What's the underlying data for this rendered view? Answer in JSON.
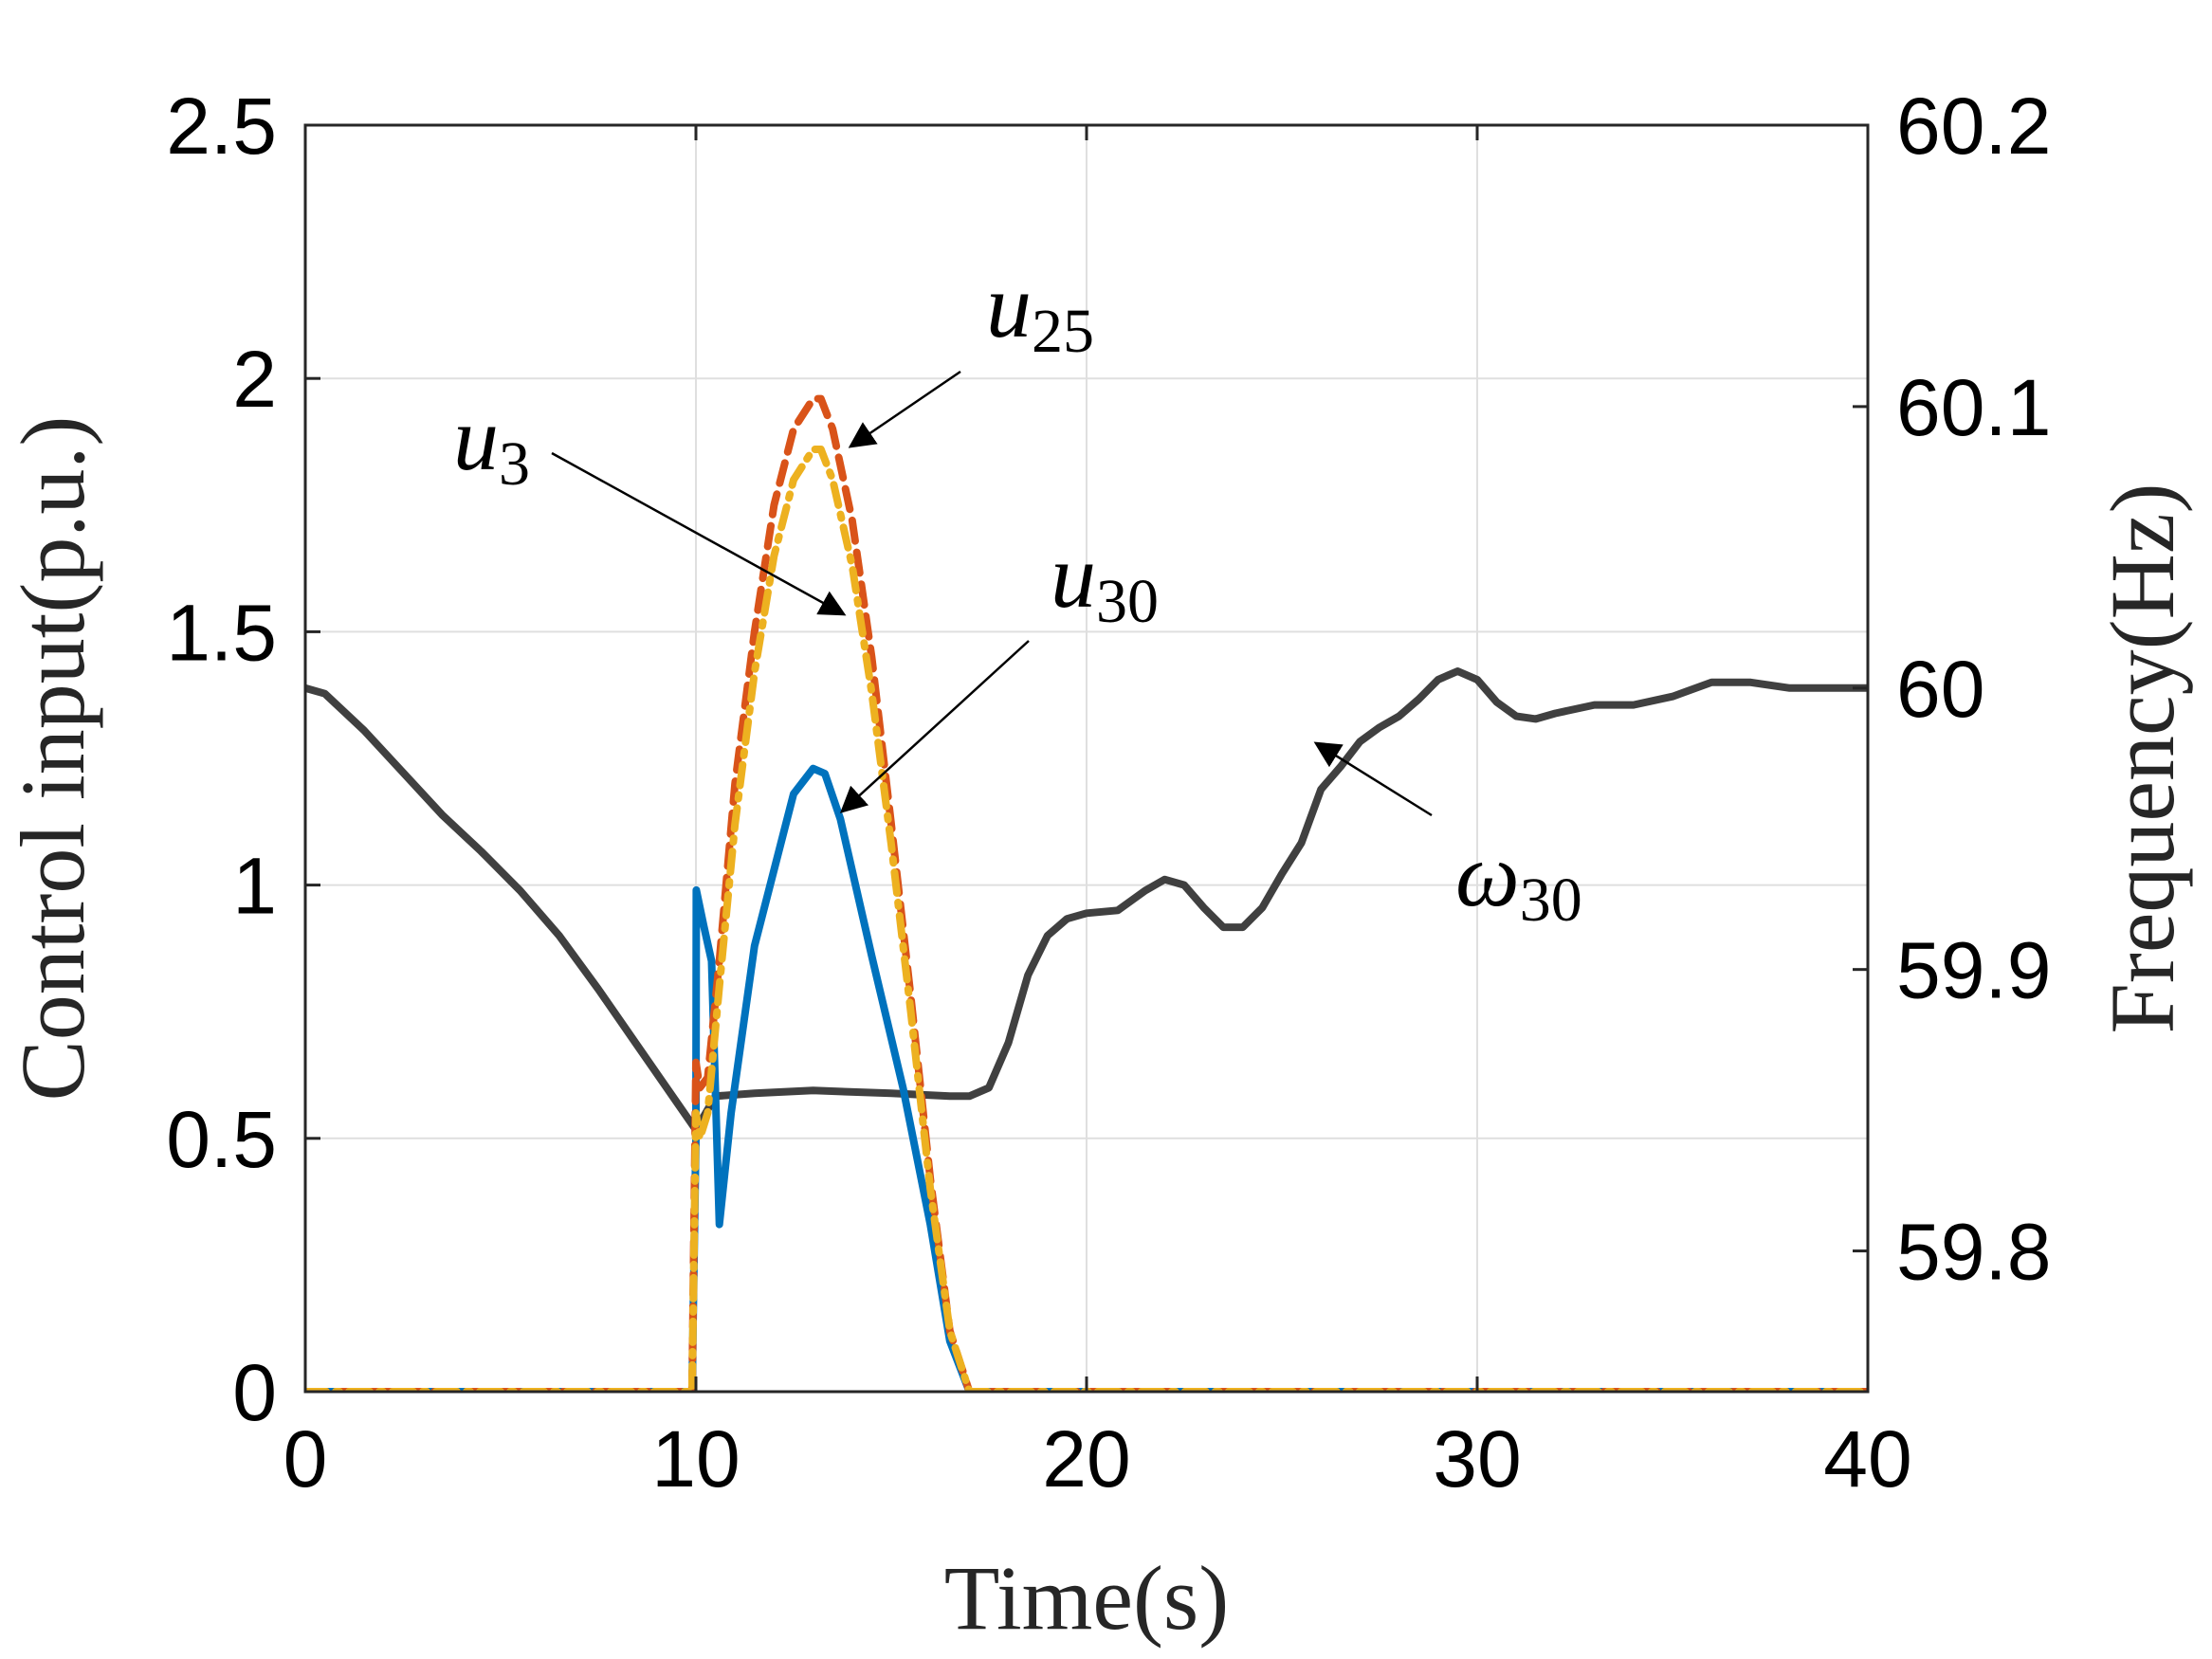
{
  "chart_data": {
    "type": "line",
    "xlabel": "Time(s)",
    "ylabel_left": "Control input(p.u.)",
    "ylabel_right": "Frequency(Hz)",
    "xlim": [
      0,
      40
    ],
    "ylim_left": [
      0,
      2.5
    ],
    "ylim_right": [
      59.75,
      60.2
    ],
    "grid": true,
    "x_ticks": [
      "0",
      "10",
      "20",
      "30",
      "40"
    ],
    "y_ticks_left": [
      "0",
      "0.5",
      "1",
      "1.5",
      "2",
      "2.5"
    ],
    "y_ticks_right": [
      "59.8",
      "59.9",
      "60",
      "60.1",
      "60.2"
    ],
    "series": [
      {
        "axis": "left",
        "color": "#0072BD",
        "style": "solid",
        "x": [
          0,
          9.9,
          10.0,
          10.01,
          10.2,
          10.4,
          10.6,
          10.9,
          11.5,
          12.5,
          13.0,
          13.3,
          13.7,
          14.5,
          15.3,
          16.0,
          16.5,
          17.0,
          17.2,
          40
        ],
        "y": [
          0,
          0,
          0.5,
          0.99,
          0.92,
          0.85,
          0.33,
          0.55,
          0.88,
          1.18,
          1.23,
          1.22,
          1.13,
          0.86,
          0.6,
          0.33,
          0.1,
          0,
          0,
          0
        ]
      },
      {
        "axis": "left",
        "color": "#D95319",
        "style": "dashed",
        "x": [
          0,
          9.9,
          10.0,
          10.1,
          10.3,
          10.6,
          11.0,
          11.5,
          12.0,
          12.5,
          13.0,
          13.2,
          13.5,
          14.0,
          14.5,
          15.0,
          15.5,
          16.0,
          16.5,
          17.0,
          17.2,
          40
        ],
        "y": [
          0,
          0,
          0.65,
          0.6,
          0.62,
          0.85,
          1.2,
          1.5,
          1.75,
          1.9,
          1.96,
          1.96,
          1.9,
          1.72,
          1.45,
          1.12,
          0.78,
          0.42,
          0.12,
          0,
          0,
          0
        ]
      },
      {
        "axis": "left",
        "color": "#EDB120",
        "style": "dashdot",
        "x": [
          0,
          9.9,
          10.0,
          10.1,
          10.3,
          10.6,
          11.0,
          11.5,
          12.0,
          12.5,
          13.0,
          13.2,
          13.5,
          14.0,
          14.5,
          15.0,
          15.5,
          16.0,
          16.5,
          17.0,
          17.2,
          40
        ],
        "y": [
          0,
          0,
          0.55,
          0.5,
          0.55,
          0.8,
          1.12,
          1.42,
          1.65,
          1.8,
          1.86,
          1.86,
          1.8,
          1.63,
          1.38,
          1.08,
          0.75,
          0.4,
          0.12,
          0,
          0,
          0
        ]
      },
      {
        "axis": "right",
        "color": "#404040",
        "style": "solid",
        "x": [
          0,
          0.5,
          1.5,
          2.5,
          3.5,
          4.5,
          5.5,
          6.5,
          7.5,
          8.5,
          9.5,
          10.0,
          10.5,
          11.5,
          13.0,
          15.0,
          16.5,
          17.0,
          17.5,
          18.0,
          18.5,
          19.0,
          19.5,
          20.0,
          20.8,
          21.5,
          22.0,
          22.5,
          23.0,
          23.5,
          24.0,
          24.5,
          25.0,
          25.5,
          26.0,
          26.5,
          27.0,
          27.5,
          28.0,
          28.5,
          29.0,
          29.5,
          30.0,
          30.5,
          31.0,
          31.5,
          32.0,
          33.0,
          34.0,
          35.0,
          36.0,
          37.0,
          38.0,
          39.0,
          40.0
        ],
        "y": [
          60.0,
          59.998,
          59.985,
          59.97,
          59.955,
          59.942,
          59.928,
          59.912,
          59.893,
          59.873,
          59.853,
          59.843,
          59.855,
          59.856,
          59.857,
          59.856,
          59.855,
          59.855,
          59.858,
          59.874,
          59.898,
          59.912,
          59.918,
          59.92,
          59.921,
          59.928,
          59.932,
          59.93,
          59.922,
          59.915,
          59.915,
          59.922,
          59.934,
          59.945,
          59.964,
          59.972,
          59.981,
          59.986,
          59.99,
          59.996,
          60.003,
          60.006,
          60.003,
          59.995,
          59.99,
          59.989,
          59.991,
          59.994,
          59.994,
          59.997,
          60.002,
          60.002,
          60.0,
          60.0,
          60.0
        ]
      }
    ],
    "annotations": [
      {
        "base": "u",
        "sub": "25"
      },
      {
        "base": "u",
        "sub": "3"
      },
      {
        "base": "u",
        "sub": "30"
      },
      {
        "base": "ω",
        "sub": "30"
      }
    ]
  }
}
